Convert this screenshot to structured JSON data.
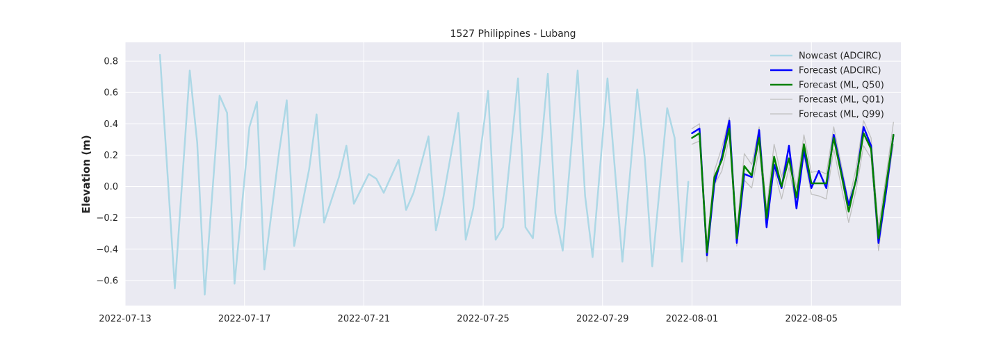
{
  "chart_data": {
    "type": "line",
    "title": "1527 Philippines - Lubang",
    "xlabel": "",
    "ylabel": "Elevation (m)",
    "x_axis_type": "date",
    "xlim": [
      "2022-07-13T00:00",
      "2022-08-08T00:00"
    ],
    "ylim": [
      -0.76,
      0.92
    ],
    "yticks": [
      -0.6,
      -0.4,
      -0.2,
      0.0,
      0.2,
      0.4,
      0.6,
      0.8
    ],
    "ytick_labels": [
      "−0.6",
      "−0.4",
      "−0.2",
      "0.0",
      "0.2",
      "0.4",
      "0.6",
      "0.8"
    ],
    "xticks": [
      "2022-07-13",
      "2022-07-17",
      "2022-07-21",
      "2022-07-25",
      "2022-07-29",
      "2022-08-01",
      "2022-08-05"
    ],
    "grid": true,
    "legend_position": "top-right",
    "background": "#eaeaf2",
    "series": [
      {
        "name": "Nowcast (ADCIRC)",
        "color": "#add8e6",
        "width": 2.5,
        "points": [
          [
            "2022-07-14T04:00",
            0.84
          ],
          [
            "2022-07-14T16:00",
            -0.65
          ],
          [
            "2022-07-15T04:00",
            0.74
          ],
          [
            "2022-07-15T10:00",
            0.28
          ],
          [
            "2022-07-15T16:00",
            -0.69
          ],
          [
            "2022-07-16T04:00",
            0.58
          ],
          [
            "2022-07-16T10:00",
            0.47
          ],
          [
            "2022-07-16T16:00",
            -0.62
          ],
          [
            "2022-07-17T04:00",
            0.38
          ],
          [
            "2022-07-17T10:00",
            0.54
          ],
          [
            "2022-07-17T16:00",
            -0.53
          ],
          [
            "2022-07-18T04:00",
            0.23
          ],
          [
            "2022-07-18T10:00",
            0.55
          ],
          [
            "2022-07-18T16:00",
            -0.38
          ],
          [
            "2022-07-19T04:00",
            0.11
          ],
          [
            "2022-07-19T10:00",
            0.46
          ],
          [
            "2022-07-19T16:00",
            -0.23
          ],
          [
            "2022-07-20T04:00",
            0.06
          ],
          [
            "2022-07-20T10:00",
            0.26
          ],
          [
            "2022-07-20T16:00",
            -0.11
          ],
          [
            "2022-07-21T04:00",
            0.08
          ],
          [
            "2022-07-21T10:00",
            0.05
          ],
          [
            "2022-07-21T16:00",
            -0.04
          ],
          [
            "2022-07-22T04:00",
            0.17
          ],
          [
            "2022-07-22T10:00",
            -0.15
          ],
          [
            "2022-07-22T16:00",
            -0.04
          ],
          [
            "2022-07-23T04:00",
            0.32
          ],
          [
            "2022-07-23T10:00",
            -0.28
          ],
          [
            "2022-07-23T16:00",
            -0.07
          ],
          [
            "2022-07-24T04:00",
            0.47
          ],
          [
            "2022-07-24T10:00",
            -0.34
          ],
          [
            "2022-07-24T16:00",
            -0.14
          ],
          [
            "2022-07-25T04:00",
            0.61
          ],
          [
            "2022-07-25T10:00",
            -0.34
          ],
          [
            "2022-07-25T16:00",
            -0.26
          ],
          [
            "2022-07-26T04:00",
            0.69
          ],
          [
            "2022-07-26T10:00",
            -0.26
          ],
          [
            "2022-07-26T16:00",
            -0.33
          ],
          [
            "2022-07-27T04:00",
            0.72
          ],
          [
            "2022-07-27T10:00",
            -0.17
          ],
          [
            "2022-07-27T16:00",
            -0.41
          ],
          [
            "2022-07-28T04:00",
            0.74
          ],
          [
            "2022-07-28T10:00",
            -0.06
          ],
          [
            "2022-07-28T16:00",
            -0.45
          ],
          [
            "2022-07-29T04:00",
            0.69
          ],
          [
            "2022-07-29T16:00",
            -0.48
          ],
          [
            "2022-07-30T04:00",
            0.62
          ],
          [
            "2022-07-30T10:00",
            0.18
          ],
          [
            "2022-07-30T16:00",
            -0.51
          ],
          [
            "2022-07-31T04:00",
            0.5
          ],
          [
            "2022-07-31T10:00",
            0.31
          ],
          [
            "2022-07-31T16:00",
            -0.48
          ],
          [
            "2022-07-31T21:00",
            0.03
          ]
        ]
      },
      {
        "name": "Forecast (ADCIRC)",
        "color": "#0000ff",
        "width": 2.5,
        "points": [
          [
            "2022-08-01T00:00",
            0.34
          ],
          [
            "2022-08-01T06:00",
            0.37
          ],
          [
            "2022-08-01T12:00",
            -0.44
          ],
          [
            "2022-08-01T18:00",
            0.02
          ],
          [
            "2022-08-02T00:00",
            0.19
          ],
          [
            "2022-08-02T06:00",
            0.42
          ],
          [
            "2022-08-02T12:00",
            -0.36
          ],
          [
            "2022-08-02T18:00",
            0.08
          ],
          [
            "2022-08-03T00:00",
            0.06
          ],
          [
            "2022-08-03T06:00",
            0.36
          ],
          [
            "2022-08-03T12:00",
            -0.26
          ],
          [
            "2022-08-03T18:00",
            0.14
          ],
          [
            "2022-08-04T00:00",
            -0.01
          ],
          [
            "2022-08-04T06:00",
            0.26
          ],
          [
            "2022-08-04T12:00",
            -0.14
          ],
          [
            "2022-08-04T18:00",
            0.23
          ],
          [
            "2022-08-05T00:00",
            -0.01
          ],
          [
            "2022-08-05T06:00",
            0.1
          ],
          [
            "2022-08-05T12:00",
            -0.01
          ],
          [
            "2022-08-05T18:00",
            0.33
          ],
          [
            "2022-08-06T00:00",
            0.1
          ],
          [
            "2022-08-06T06:00",
            -0.12
          ],
          [
            "2022-08-06T12:00",
            0.04
          ],
          [
            "2022-08-06T18:00",
            0.38
          ],
          [
            "2022-08-07T00:00",
            0.26
          ],
          [
            "2022-08-07T06:00",
            -0.36
          ],
          [
            "2022-08-07T12:00",
            -0.04
          ],
          [
            "2022-08-07T18:00",
            0.33
          ]
        ]
      },
      {
        "name": "Forecast (ML, Q50)",
        "color": "#008000",
        "width": 2.5,
        "points": [
          [
            "2022-08-01T00:00",
            0.31
          ],
          [
            "2022-08-01T06:00",
            0.34
          ],
          [
            "2022-08-01T12:00",
            -0.42
          ],
          [
            "2022-08-01T18:00",
            0.06
          ],
          [
            "2022-08-02T00:00",
            0.17
          ],
          [
            "2022-08-02T06:00",
            0.37
          ],
          [
            "2022-08-02T12:00",
            -0.33
          ],
          [
            "2022-08-02T18:00",
            0.13
          ],
          [
            "2022-08-03T00:00",
            0.07
          ],
          [
            "2022-08-03T06:00",
            0.31
          ],
          [
            "2022-08-03T12:00",
            -0.2
          ],
          [
            "2022-08-03T18:00",
            0.19
          ],
          [
            "2022-08-04T00:00",
            0.0
          ],
          [
            "2022-08-04T06:00",
            0.18
          ],
          [
            "2022-08-04T12:00",
            -0.07
          ],
          [
            "2022-08-04T18:00",
            0.27
          ],
          [
            "2022-08-05T00:00",
            0.02
          ],
          [
            "2022-08-05T06:00",
            0.02
          ],
          [
            "2022-08-05T12:00",
            0.02
          ],
          [
            "2022-08-05T18:00",
            0.31
          ],
          [
            "2022-08-06T00:00",
            0.08
          ],
          [
            "2022-08-06T06:00",
            -0.16
          ],
          [
            "2022-08-06T12:00",
            0.05
          ],
          [
            "2022-08-06T18:00",
            0.34
          ],
          [
            "2022-08-07T00:00",
            0.24
          ],
          [
            "2022-08-07T06:00",
            -0.33
          ],
          [
            "2022-08-07T12:00",
            0.0
          ],
          [
            "2022-08-07T18:00",
            0.33
          ]
        ]
      },
      {
        "name": "Forecast (ML, Q01)",
        "color": "#bfbfbf",
        "width": 1.3,
        "points": [
          [
            "2022-08-01T00:00",
            0.27
          ],
          [
            "2022-08-01T06:00",
            0.29
          ],
          [
            "2022-08-01T12:00",
            -0.48
          ],
          [
            "2022-08-01T18:00",
            0.01
          ],
          [
            "2022-08-02T00:00",
            0.1
          ],
          [
            "2022-08-02T06:00",
            0.31
          ],
          [
            "2022-08-02T12:00",
            -0.38
          ],
          [
            "2022-08-02T18:00",
            0.04
          ],
          [
            "2022-08-03T00:00",
            -0.01
          ],
          [
            "2022-08-03T06:00",
            0.24
          ],
          [
            "2022-08-03T12:00",
            -0.26
          ],
          [
            "2022-08-03T18:00",
            0.11
          ],
          [
            "2022-08-04T00:00",
            -0.08
          ],
          [
            "2022-08-04T06:00",
            0.12
          ],
          [
            "2022-08-04T12:00",
            -0.14
          ],
          [
            "2022-08-04T18:00",
            0.2
          ],
          [
            "2022-08-05T00:00",
            -0.05
          ],
          [
            "2022-08-05T06:00",
            -0.06
          ],
          [
            "2022-08-05T12:00",
            -0.08
          ],
          [
            "2022-08-05T18:00",
            0.24
          ],
          [
            "2022-08-06T00:00",
            0.0
          ],
          [
            "2022-08-06T06:00",
            -0.23
          ],
          [
            "2022-08-06T12:00",
            -0.02
          ],
          [
            "2022-08-06T18:00",
            0.26
          ],
          [
            "2022-08-07T00:00",
            0.18
          ],
          [
            "2022-08-07T06:00",
            -0.41
          ],
          [
            "2022-08-07T12:00",
            -0.05
          ],
          [
            "2022-08-07T18:00",
            0.27
          ]
        ]
      },
      {
        "name": "Forecast (ML, Q99)",
        "color": "#bfbfbf",
        "width": 1.3,
        "points": [
          [
            "2022-08-01T00:00",
            0.37
          ],
          [
            "2022-08-01T06:00",
            0.4
          ],
          [
            "2022-08-01T12:00",
            -0.36
          ],
          [
            "2022-08-01T18:00",
            0.1
          ],
          [
            "2022-08-02T00:00",
            0.25
          ],
          [
            "2022-08-02T06:00",
            0.44
          ],
          [
            "2022-08-02T12:00",
            -0.28
          ],
          [
            "2022-08-02T18:00",
            0.21
          ],
          [
            "2022-08-03T00:00",
            0.14
          ],
          [
            "2022-08-03T06:00",
            0.38
          ],
          [
            "2022-08-03T12:00",
            -0.14
          ],
          [
            "2022-08-03T18:00",
            0.27
          ],
          [
            "2022-08-04T00:00",
            0.06
          ],
          [
            "2022-08-04T06:00",
            0.25
          ],
          [
            "2022-08-04T12:00",
            -0.01
          ],
          [
            "2022-08-04T18:00",
            0.33
          ],
          [
            "2022-08-05T00:00",
            0.09
          ],
          [
            "2022-08-05T06:00",
            0.1
          ],
          [
            "2022-08-05T12:00",
            0.08
          ],
          [
            "2022-08-05T18:00",
            0.38
          ],
          [
            "2022-08-06T00:00",
            0.14
          ],
          [
            "2022-08-06T06:00",
            -0.1
          ],
          [
            "2022-08-06T12:00",
            0.12
          ],
          [
            "2022-08-06T18:00",
            0.42
          ],
          [
            "2022-08-07T00:00",
            0.31
          ],
          [
            "2022-08-07T06:00",
            -0.26
          ],
          [
            "2022-08-07T12:00",
            0.06
          ],
          [
            "2022-08-07T18:00",
            0.41
          ]
        ]
      }
    ]
  }
}
